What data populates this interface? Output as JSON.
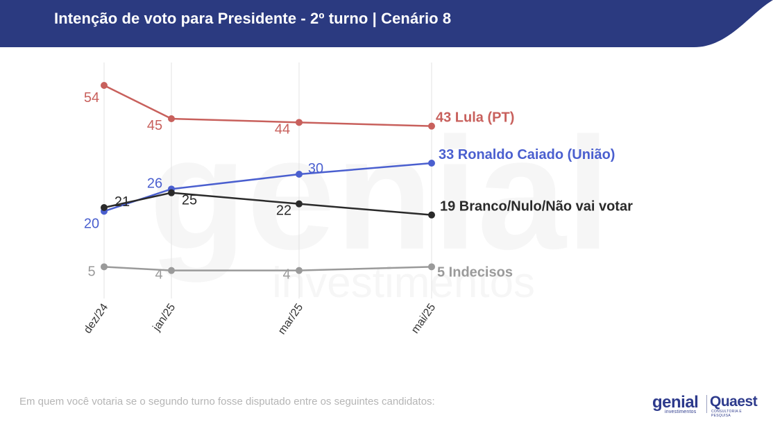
{
  "header": {
    "title": "Intenção de voto para Presidente - 2º turno | Cenário 8",
    "bg_color": "#2b3a80"
  },
  "footnote": "Em quem você votaria se o segundo turno fosse disputado entre os seguintes candidatos:",
  "logos": {
    "genial": "genial",
    "genial_sub": "investimentos",
    "quaest": "Quaest",
    "quaest_sub": "CONSULTORIA E PESQUISA"
  },
  "watermark": {
    "word": "genial",
    "sub": "investimentos"
  },
  "chart_data": {
    "type": "line",
    "categories": [
      "dez/24",
      "jan/25",
      "mar/25",
      "mai/25"
    ],
    "ylim": [
      0,
      60
    ],
    "grid": "vertical",
    "series": [
      {
        "name": "Lula (PT)",
        "color": "#c8605c",
        "values": [
          54,
          45,
          44,
          43
        ],
        "point_labels": [
          "54",
          "45",
          "44"
        ],
        "end_label": "43 Lula (PT)"
      },
      {
        "name": "Ronaldo Caiado (União)",
        "color": "#4a5fcf",
        "values": [
          20,
          26,
          30,
          33
        ],
        "point_labels": [
          "20",
          "26",
          "30"
        ],
        "end_label": "33 Ronaldo Caiado (União)"
      },
      {
        "name": "Branco/Nulo/Não vai votar",
        "color": "#2a2a2a",
        "values": [
          21,
          25,
          22,
          19
        ],
        "point_labels": [
          "21",
          "25",
          "22"
        ],
        "end_label": "19 Branco/Nulo/Não vai votar"
      },
      {
        "name": "Indecisos",
        "color": "#9a9a9a",
        "values": [
          5,
          4,
          4,
          5
        ],
        "point_labels": [
          "5",
          "4",
          "4"
        ],
        "end_label": "5 Indecisos"
      }
    ]
  }
}
